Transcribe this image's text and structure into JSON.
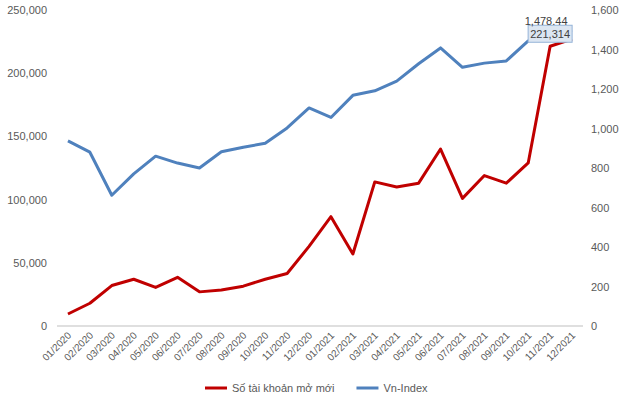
{
  "chart_data": {
    "type": "line",
    "categories": [
      "01/2020",
      "02/2020",
      "03/2020",
      "04/2020",
      "05/2020",
      "06/2020",
      "07/2020",
      "08/2020",
      "09/2020",
      "10/2020",
      "11/2020",
      "12/2020",
      "01/2021",
      "02/2021",
      "03/2021",
      "04/2021",
      "05/2021",
      "06/2021",
      "07/2021",
      "08/2021",
      "09/2021",
      "10/2021",
      "11/2021",
      "12/2021"
    ],
    "series": [
      {
        "name": "Số tài khoản mở mới",
        "color": "#c00000",
        "values": [
          9500,
          18000,
          32000,
          37000,
          30500,
          38500,
          27000,
          28500,
          31500,
          37000,
          41500,
          63000,
          86500,
          57000,
          114000,
          110000,
          113000,
          140000,
          101000,
          119000,
          113000,
          129000,
          221314,
          227000
        ],
        "value_labels": [
          null,
          null,
          null,
          null,
          null,
          null,
          null,
          null,
          null,
          null,
          null,
          null,
          null,
          null,
          null,
          null,
          null,
          null,
          null,
          null,
          null,
          null,
          "221,314",
          null
        ]
      },
      {
        "name": "Vn-Index",
        "color": "#4f81bd",
        "axis": "y2",
        "values": [
          937,
          880,
          662,
          770,
          860,
          825,
          800,
          882,
          905,
          925,
          1003,
          1104,
          1056,
          1168,
          1191,
          1240,
          1328,
          1408,
          1310,
          1331,
          1342,
          1444,
          1478.44,
          1498
        ],
        "value_labels": [
          null,
          null,
          null,
          null,
          null,
          null,
          null,
          null,
          null,
          null,
          null,
          null,
          null,
          null,
          null,
          null,
          null,
          null,
          null,
          null,
          null,
          null,
          "1,478.44",
          null
        ]
      }
    ],
    "ylim": [
      0,
      250000
    ],
    "yticks": [
      0,
      {
        "value": 50000,
        "label": "50,000"
      },
      {
        "value": 100000,
        "label": "100,000"
      },
      {
        "value": 150000,
        "label": "150,000"
      },
      {
        "value": 200000,
        "label": "200,000"
      },
      {
        "value": 250000,
        "label": "250,000"
      }
    ],
    "y2lim": [
      0,
      1600
    ],
    "y2ticks": [
      0,
      200,
      400,
      600,
      800,
      {
        "value": 1000,
        "label": "1,000"
      },
      {
        "value": 1200,
        "label": "1,200"
      },
      {
        "value": 1400,
        "label": "1,400"
      },
      {
        "value": 1600,
        "label": "1,600"
      }
    ],
    "grid": false,
    "legend": "bottom"
  }
}
